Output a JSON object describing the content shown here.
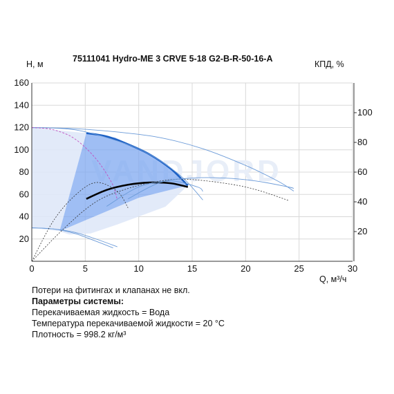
{
  "header": {
    "title": "75111041 Hydro-ME 3 CRVE 5-18 G2-B-R-50-16-A",
    "y_left_label": "H, м",
    "y_right_label": "КПД, %",
    "x_label": "Q, м³/ч"
  },
  "watermark": "VANDJORD",
  "notes": {
    "line1": "Потери на фитингах и клапанах не вкл.",
    "params_title": "Параметры системы:",
    "fluid": "Перекачиваемая жидкость = Вода",
    "temperature": "Температура перекачиваемой жидкости = 20 °C",
    "density": "Плотность = 998.2 кг/м³"
  },
  "colors": {
    "operating_area": "#7fa8f0",
    "light_area": "#dfe8f8",
    "head_curve": "#1a5fc4",
    "thin_curve": "#6a9ad8",
    "efficiency_curve": "#000000",
    "dashed_curve": "#c050c0",
    "grid": "#d8d8d8"
  },
  "chart_data": {
    "type": "line",
    "title": "75111041 Hydro-ME 3 CRVE 5-18 G2-B-R-50-16-A",
    "xlabel": "Q, м³/ч",
    "ylabel": "H, м",
    "y2label": "КПД, %",
    "xlim": [
      0,
      30
    ],
    "ylim": [
      0,
      160
    ],
    "y2lim": [
      0,
      120
    ],
    "x_ticks": [
      0,
      5,
      10,
      15,
      20,
      25,
      30
    ],
    "y_ticks": [
      20,
      40,
      60,
      80,
      100,
      120,
      140,
      160
    ],
    "y2_ticks": [
      20,
      40,
      60,
      80,
      100
    ],
    "grid": true,
    "operating_area": [
      [
        5.1,
        115
      ],
      [
        7.8,
        111
      ],
      [
        10.5,
        99
      ],
      [
        13,
        83
      ],
      [
        14.6,
        68
      ],
      [
        10,
        57
      ],
      [
        2.6,
        27
      ]
    ],
    "light_area_head": [
      [
        0,
        120
      ],
      [
        5.1,
        115
      ],
      [
        2.6,
        27
      ],
      [
        0,
        30
      ]
    ],
    "light_area_efficiency": [
      [
        2.6,
        27
      ],
      [
        10,
        57
      ],
      [
        14.6,
        68
      ],
      [
        12.5,
        49
      ],
      [
        8,
        33
      ],
      [
        5.5,
        25
      ],
      [
        3.5,
        24
      ]
    ],
    "series": [
      {
        "name": "",
        "axis": "left",
        "style": "bold-blue",
        "points": [
          [
            5.1,
            115
          ],
          [
            7,
            112
          ],
          [
            9,
            105
          ],
          [
            11,
            96
          ],
          [
            13,
            83
          ],
          [
            14.6,
            68
          ]
        ]
      },
      {
        "name": "",
        "axis": "left",
        "style": "thin-blue",
        "points": [
          [
            0,
            120
          ],
          [
            4,
            119
          ],
          [
            8,
            116
          ],
          [
            12,
            111
          ],
          [
            16,
            101
          ],
          [
            20,
            86
          ],
          [
            23,
            72
          ],
          [
            24.5,
            63
          ]
        ]
      },
      {
        "name": "",
        "axis": "left",
        "style": "thin-blue",
        "points": [
          [
            0,
            120
          ],
          [
            4,
            118
          ],
          [
            8,
            108
          ],
          [
            11,
            96
          ],
          [
            14,
            76
          ],
          [
            16,
            55
          ]
        ]
      },
      {
        "name": "",
        "axis": "left",
        "style": "dashed-purple",
        "points": [
          [
            0,
            120
          ],
          [
            2,
            118
          ],
          [
            4,
            110
          ],
          [
            6,
            92
          ],
          [
            7.5,
            70
          ],
          [
            8,
            55
          ]
        ]
      },
      {
        "name": "",
        "axis": "left",
        "style": "thin-blue",
        "points": [
          [
            0,
            30
          ],
          [
            2,
            29
          ],
          [
            4,
            26
          ],
          [
            6,
            20
          ],
          [
            8,
            13
          ]
        ]
      },
      {
        "name": "",
        "axis": "left",
        "style": "thin-blue",
        "points": [
          [
            0,
            30
          ],
          [
            2,
            29
          ],
          [
            4,
            25
          ],
          [
            6,
            18
          ],
          [
            7.6,
            12
          ]
        ]
      },
      {
        "name": "",
        "axis": "right",
        "style": "bold-black",
        "points": [
          [
            5.1,
            42
          ],
          [
            7,
            48
          ],
          [
            9,
            51.5
          ],
          [
            11,
            53
          ],
          [
            13,
            52.5
          ],
          [
            14.6,
            50
          ]
        ]
      },
      {
        "name": "",
        "axis": "right",
        "style": "dashed-black",
        "points": [
          [
            0,
            0
          ],
          [
            2,
            27
          ],
          [
            4,
            44
          ],
          [
            6,
            53
          ],
          [
            8,
            47
          ],
          [
            9,
            36
          ]
        ]
      },
      {
        "name": "",
        "axis": "right",
        "style": "dashed-black",
        "points": [
          [
            0,
            0
          ],
          [
            3,
            22
          ],
          [
            6,
            40
          ],
          [
            9,
            49
          ],
          [
            12,
            54
          ],
          [
            15,
            55
          ],
          [
            20,
            50
          ],
          [
            24,
            41
          ]
        ]
      },
      {
        "name": "",
        "axis": "right",
        "style": "thin-blue",
        "points": [
          [
            9,
            42
          ],
          [
            12,
            53
          ],
          [
            15,
            56
          ],
          [
            18,
            56
          ],
          [
            21,
            54
          ],
          [
            24,
            50
          ],
          [
            24.5,
            49
          ]
        ]
      },
      {
        "name": "",
        "axis": "right",
        "style": "thin-blue",
        "points": [
          [
            7,
            37
          ],
          [
            10,
            50
          ],
          [
            13,
            54
          ],
          [
            15.5,
            50
          ],
          [
            16,
            47
          ]
        ]
      }
    ]
  }
}
